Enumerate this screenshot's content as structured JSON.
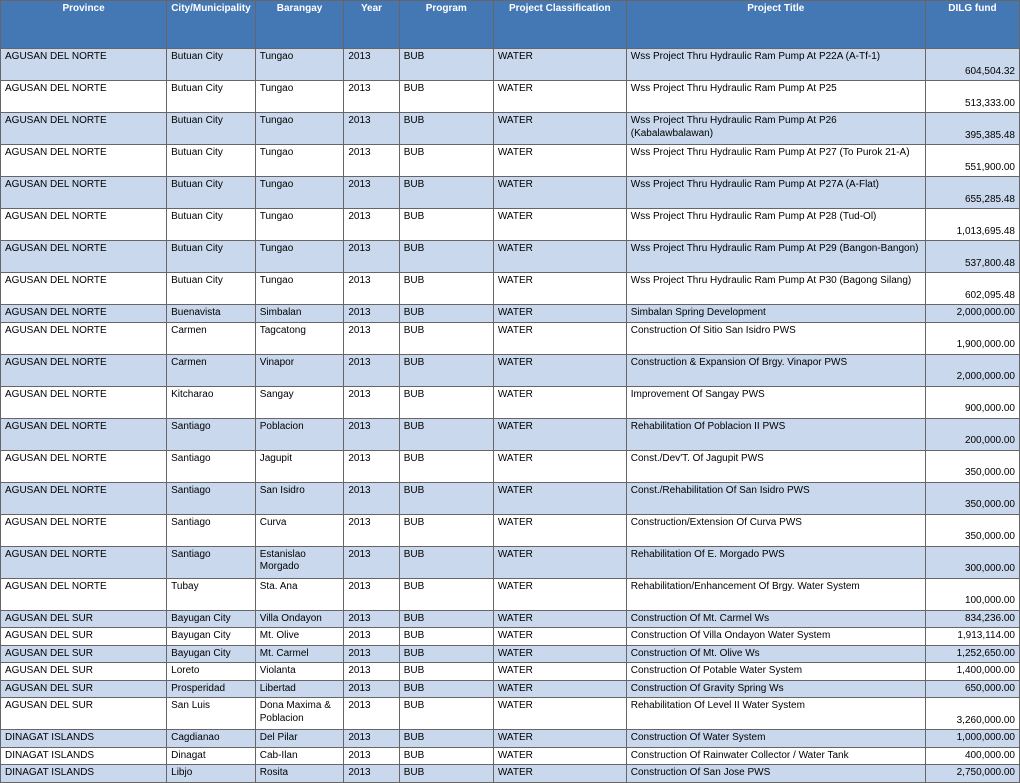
{
  "colors": {
    "header_bg": "#4478b4",
    "row_alt_bg": "#c9d8ec",
    "row_bg": "#ffffff",
    "border": "#666666",
    "header_text": "#ffffff",
    "body_text": "#000000"
  },
  "columns": [
    "Province",
    "City/Municipality",
    "Barangay",
    "Year",
    "Program",
    "Project Classification",
    "Project Title",
    "DILG fund"
  ],
  "rows": [
    {
      "alt": true,
      "tall": true,
      "province": "AGUSAN DEL NORTE",
      "city": "Butuan City",
      "barangay": "Tungao",
      "year": "2013",
      "program": "BUB",
      "classification": "WATER",
      "title": "Wss Project Thru Hydraulic Ram Pump At P22A (A-Tf-1)",
      "fund": "604,504.32"
    },
    {
      "alt": false,
      "tall": true,
      "province": "AGUSAN DEL NORTE",
      "city": "Butuan City",
      "barangay": "Tungao",
      "year": "2013",
      "program": "BUB",
      "classification": "WATER",
      "title": "Wss Project Thru Hydraulic Ram Pump At P25",
      "fund": "513,333.00"
    },
    {
      "alt": true,
      "tall": true,
      "province": "AGUSAN DEL NORTE",
      "city": "Butuan City",
      "barangay": "Tungao",
      "year": "2013",
      "program": "BUB",
      "classification": "WATER",
      "title": "Wss Project Thru Hydraulic Ram Pump At P26 (Kabalawbalawan)",
      "fund": "395,385.48"
    },
    {
      "alt": false,
      "tall": true,
      "province": "AGUSAN DEL NORTE",
      "city": "Butuan City",
      "barangay": "Tungao",
      "year": "2013",
      "program": "BUB",
      "classification": "WATER",
      "title": "Wss Project Thru Hydraulic Ram Pump At P27 (To Purok 21-A)",
      "fund": "551,900.00"
    },
    {
      "alt": true,
      "tall": true,
      "province": "AGUSAN DEL NORTE",
      "city": "Butuan City",
      "barangay": "Tungao",
      "year": "2013",
      "program": "BUB",
      "classification": "WATER",
      "title": "Wss Project Thru Hydraulic Ram Pump At P27A (A-Flat)",
      "fund": "655,285.48"
    },
    {
      "alt": false,
      "tall": true,
      "province": "AGUSAN DEL NORTE",
      "city": "Butuan City",
      "barangay": "Tungao",
      "year": "2013",
      "program": "BUB",
      "classification": "WATER",
      "title": "Wss Project Thru Hydraulic Ram Pump At P28 (Tud-Ol)",
      "fund": "1,013,695.48"
    },
    {
      "alt": true,
      "tall": true,
      "province": "AGUSAN DEL NORTE",
      "city": "Butuan City",
      "barangay": "Tungao",
      "year": "2013",
      "program": "BUB",
      "classification": "WATER",
      "title": "Wss Project Thru Hydraulic Ram Pump At P29 (Bangon-Bangon)",
      "fund": "537,800.48"
    },
    {
      "alt": false,
      "tall": true,
      "province": "AGUSAN DEL NORTE",
      "city": "Butuan City",
      "barangay": "Tungao",
      "year": "2013",
      "program": "BUB",
      "classification": "WATER",
      "title": "Wss Project Thru Hydraulic Ram Pump At P30 (Bagong Silang)",
      "fund": "602,095.48"
    },
    {
      "alt": true,
      "tall": false,
      "province": "AGUSAN DEL NORTE",
      "city": "Buenavista",
      "barangay": "Simbalan",
      "year": "2013",
      "program": "BUB",
      "classification": "WATER",
      "title": "Simbalan Spring Development",
      "fund": "2,000,000.00"
    },
    {
      "alt": false,
      "tall": true,
      "province": "AGUSAN DEL NORTE",
      "city": "Carmen",
      "barangay": "Tagcatong",
      "year": "2013",
      "program": "BUB",
      "classification": "WATER",
      "title": "Construction Of Sitio San Isidro PWS",
      "fund": "1,900,000.00"
    },
    {
      "alt": true,
      "tall": true,
      "province": "AGUSAN DEL NORTE",
      "city": "Carmen",
      "barangay": "Vinapor",
      "year": "2013",
      "program": "BUB",
      "classification": "WATER",
      "title": "Construction & Expansion Of Brgy. Vinapor PWS",
      "fund": "2,000,000.00"
    },
    {
      "alt": false,
      "tall": true,
      "province": "AGUSAN DEL NORTE",
      "city": "Kitcharao",
      "barangay": "Sangay",
      "year": "2013",
      "program": "BUB",
      "classification": "WATER",
      "title": "Improvement Of Sangay PWS",
      "fund": "900,000.00"
    },
    {
      "alt": true,
      "tall": true,
      "province": "AGUSAN DEL NORTE",
      "city": "Santiago",
      "barangay": "Poblacion",
      "year": "2013",
      "program": "BUB",
      "classification": "WATER",
      "title": "Rehabilitation Of Poblacion II PWS",
      "fund": "200,000.00"
    },
    {
      "alt": false,
      "tall": true,
      "province": "AGUSAN DEL NORTE",
      "city": "Santiago",
      "barangay": "Jagupit",
      "year": "2013",
      "program": "BUB",
      "classification": "WATER",
      "title": "Const./Dev'T. Of Jagupit PWS",
      "fund": "350,000.00"
    },
    {
      "alt": true,
      "tall": true,
      "province": "AGUSAN DEL NORTE",
      "city": "Santiago",
      "barangay": "San Isidro",
      "year": "2013",
      "program": "BUB",
      "classification": "WATER",
      "title": "Const./Rehabilitation Of San Isidro PWS",
      "fund": "350,000.00"
    },
    {
      "alt": false,
      "tall": true,
      "province": "AGUSAN DEL NORTE",
      "city": "Santiago",
      "barangay": "Curva",
      "year": "2013",
      "program": "BUB",
      "classification": "WATER",
      "title": "Construction/Extension Of Curva PWS",
      "fund": "350,000.00"
    },
    {
      "alt": true,
      "tall": true,
      "province": "AGUSAN DEL NORTE",
      "city": "Santiago",
      "barangay": "Estanislao Morgado",
      "year": "2013",
      "program": "BUB",
      "classification": "WATER",
      "title": "Rehabilitation Of E. Morgado PWS",
      "fund": "300,000.00"
    },
    {
      "alt": false,
      "tall": true,
      "province": "AGUSAN DEL NORTE",
      "city": "Tubay",
      "barangay": "Sta. Ana",
      "year": "2013",
      "program": "BUB",
      "classification": "WATER",
      "title": "Rehabilitation/Enhancement Of Brgy. Water System",
      "fund": "100,000.00"
    },
    {
      "alt": true,
      "tall": false,
      "province": "AGUSAN DEL SUR",
      "city": "Bayugan City",
      "barangay": "Villa Ondayon",
      "year": "2013",
      "program": "BUB",
      "classification": "WATER",
      "title": "Construction Of Mt. Carmel Ws",
      "fund": "834,236.00"
    },
    {
      "alt": false,
      "tall": false,
      "province": "AGUSAN DEL SUR",
      "city": "Bayugan City",
      "barangay": "Mt. Olive",
      "year": "2013",
      "program": "BUB",
      "classification": "WATER",
      "title": "Construction Of Villa Ondayon Water System",
      "fund": "1,913,114.00"
    },
    {
      "alt": true,
      "tall": false,
      "province": "AGUSAN DEL SUR",
      "city": "Bayugan City",
      "barangay": "Mt. Carmel",
      "year": "2013",
      "program": "BUB",
      "classification": "WATER",
      "title": "Construction Of Mt. Olive Ws",
      "fund": "1,252,650.00"
    },
    {
      "alt": false,
      "tall": false,
      "province": "AGUSAN DEL SUR",
      "city": "Loreto",
      "barangay": "Violanta",
      "year": "2013",
      "program": "BUB",
      "classification": "WATER",
      "title": "Construction Of Potable Water System",
      "fund": "1,400,000.00"
    },
    {
      "alt": true,
      "tall": false,
      "province": "AGUSAN DEL SUR",
      "city": "Prosperidad",
      "barangay": "Libertad",
      "year": "2013",
      "program": "BUB",
      "classification": "WATER",
      "title": "Construction Of Gravity Spring Ws",
      "fund": "650,000.00"
    },
    {
      "alt": false,
      "tall": true,
      "province": "AGUSAN DEL SUR",
      "city": "San Luis",
      "barangay": "Dona Maxima & Poblacion",
      "year": "2013",
      "program": "BUB",
      "classification": "WATER",
      "title": "Rehabilitation Of Level II Water System",
      "fund": "3,260,000.00"
    },
    {
      "alt": true,
      "tall": false,
      "province": "DINAGAT ISLANDS",
      "city": "Cagdianao",
      "barangay": "Del Pilar",
      "year": "2013",
      "program": "BUB",
      "classification": "WATER",
      "title": "Construction Of Water System",
      "fund": "1,000,000.00"
    },
    {
      "alt": false,
      "tall": false,
      "province": "DINAGAT ISLANDS",
      "city": "Dinagat",
      "barangay": "Cab-Ilan",
      "year": "2013",
      "program": "BUB",
      "classification": "WATER",
      "title": "Construction Of Rainwater Collector / Water Tank",
      "fund": "400,000.00"
    },
    {
      "alt": true,
      "tall": false,
      "province": "DINAGAT ISLANDS",
      "city": "Libjo",
      "barangay": "Rosita",
      "year": "2013",
      "program": "BUB",
      "classification": "WATER",
      "title": "Construction Of San Jose PWS",
      "fund": "2,750,000.00"
    }
  ]
}
